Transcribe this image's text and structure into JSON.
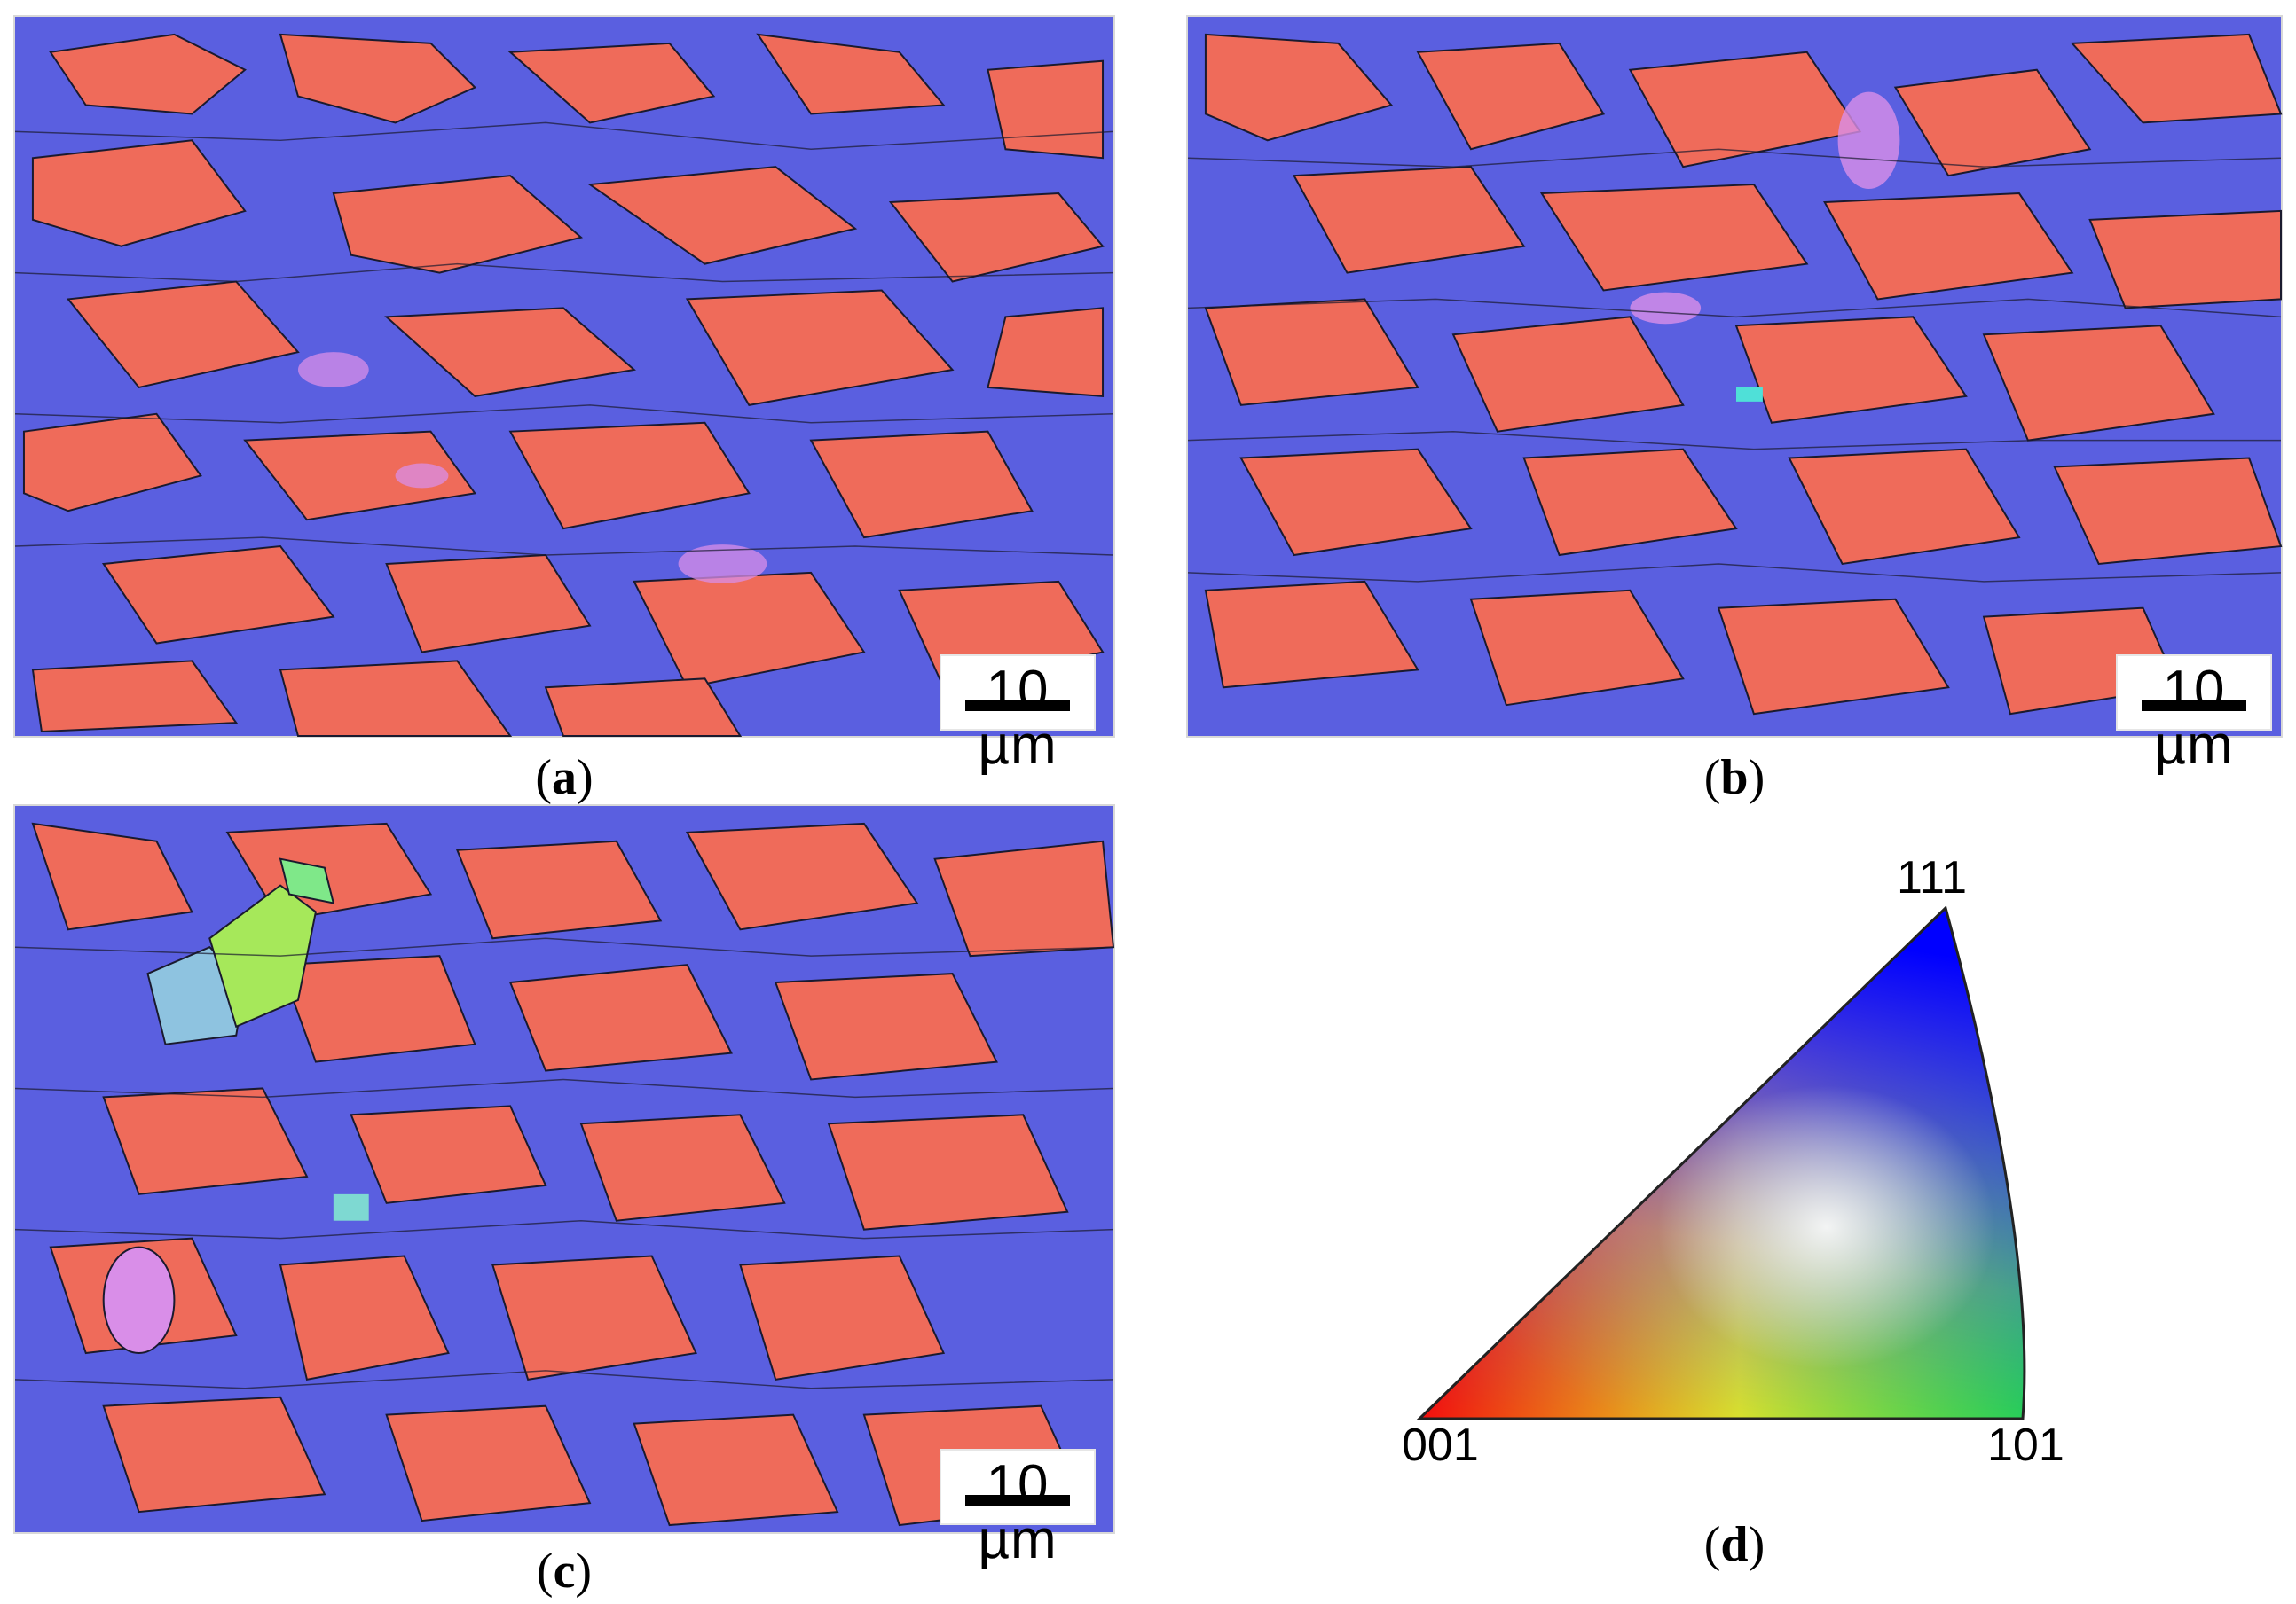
{
  "panels": {
    "a": {
      "scale_label": "10 µm",
      "caption_open": "(",
      "caption_letter": "a",
      "caption_close": ")"
    },
    "b": {
      "scale_label": "10 µm",
      "caption_open": "(",
      "caption_letter": "b",
      "caption_close": ")"
    },
    "c": {
      "scale_label": "10 µm",
      "caption_open": "(",
      "caption_letter": "c",
      "caption_close": ")"
    },
    "d": {
      "caption_open": "(",
      "caption_letter": "d",
      "caption_close": ")"
    }
  },
  "legend": {
    "labels": {
      "corner_001": "001",
      "corner_101": "101",
      "corner_111": "111"
    },
    "colors": {
      "corner_001": "#ff0000",
      "corner_101": "#00ff00",
      "corner_111": "#0000ff"
    }
  },
  "palette": {
    "blue_grain": "#5a5fe0",
    "red_grain": "#ef6b5a",
    "boundary": "#1a1a2e"
  }
}
